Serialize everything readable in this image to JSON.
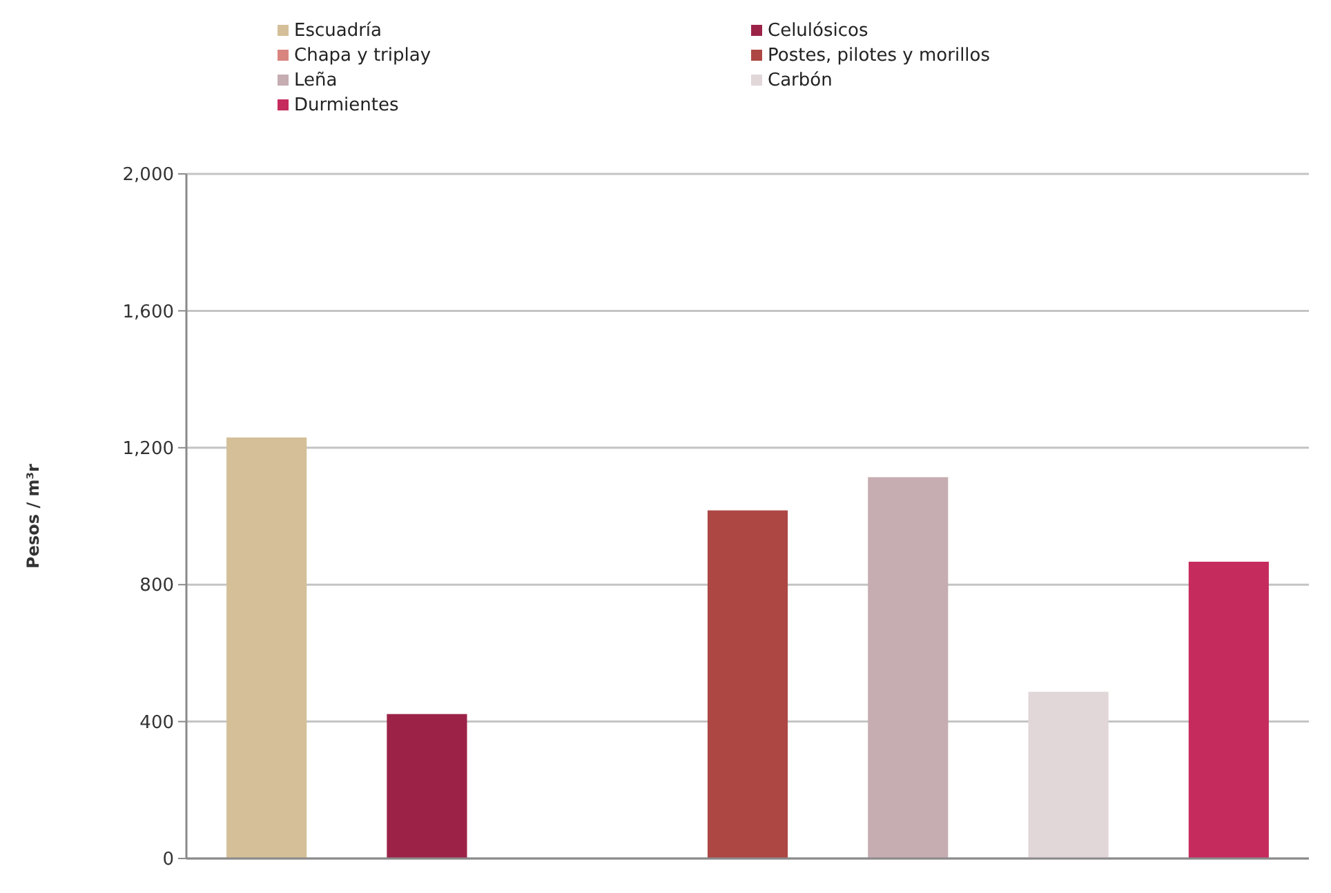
{
  "chart_data": {
    "type": "bar",
    "ylabel": "Pesos / m³r",
    "categories": [
      null,
      null,
      null,
      null,
      null,
      null,
      null
    ],
    "series": [
      {
        "name": "Escuadría",
        "color": "#d4bf98",
        "values": [
          1230,
          null,
          null,
          null,
          null,
          null,
          null
        ]
      },
      {
        "name": "Celulósicos",
        "color": "#9c2347",
        "values": [
          null,
          422,
          null,
          null,
          null,
          null,
          null
        ]
      },
      {
        "name": "Chapa y triplay",
        "color": "#d9857f",
        "values": [
          null,
          null,
          null,
          null,
          null,
          null,
          null
        ]
      },
      {
        "name": "Postes, pilotes y morillos",
        "color": "#ad4744",
        "values": [
          null,
          null,
          null,
          1017,
          null,
          null,
          null
        ]
      },
      {
        "name": "Leña",
        "color": "#c6adb1",
        "values": [
          null,
          null,
          null,
          null,
          1114,
          null,
          null
        ]
      },
      {
        "name": "Carbón",
        "color": "#e1d6d8",
        "values": [
          null,
          null,
          null,
          null,
          null,
          487,
          null
        ]
      },
      {
        "name": "Durmientes",
        "color": "#c52b5c",
        "values": [
          null,
          null,
          null,
          null,
          null,
          null,
          867
        ]
      }
    ],
    "ylim": [
      0,
      2000
    ],
    "yticks": [
      0,
      {
        "value": 400,
        "label": "400"
      },
      {
        "value": 800,
        "label": "800"
      },
      {
        "value": 1200,
        "label": "1,200"
      },
      {
        "value": 1600,
        "label": "1,600"
      },
      {
        "value": 2000,
        "label": "2,000"
      }
    ],
    "grid": "y",
    "legend": "top",
    "tick_labels": "y"
  }
}
